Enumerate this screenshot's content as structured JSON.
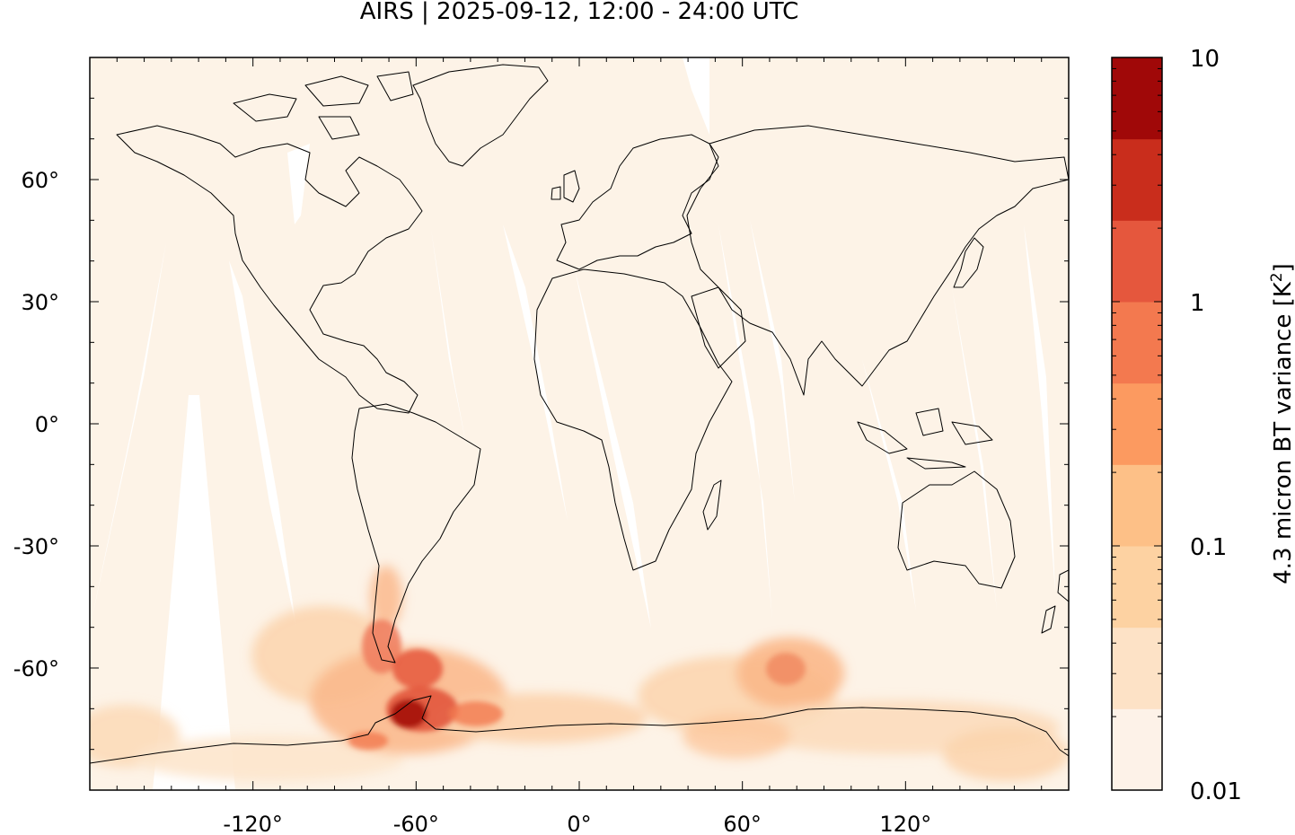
{
  "title": "AIRS | 2025-09-12, 12:00 - 24:00 UTC",
  "map": {
    "lon_range": [
      -180,
      180
    ],
    "lat_range": [
      -90,
      90
    ],
    "x_ticks": [
      {
        "value": -120,
        "label": "-120°"
      },
      {
        "value": -60,
        "label": "-60°"
      },
      {
        "value": 0,
        "label": "0°"
      },
      {
        "value": 60,
        "label": "60°"
      },
      {
        "value": 120,
        "label": "120°"
      }
    ],
    "y_ticks": [
      {
        "value": 60,
        "label": "60°"
      },
      {
        "value": 30,
        "label": "30°"
      },
      {
        "value": 0,
        "label": "0°"
      },
      {
        "value": -30,
        "label": "-30°"
      },
      {
        "value": -60,
        "label": "-60°"
      }
    ]
  },
  "colorbar": {
    "label_main": "4.3 micron BT variance [K",
    "label_sup": "2",
    "label_end": "]",
    "scale": "log",
    "ticks": [
      {
        "value": 10,
        "label": "10"
      },
      {
        "value": 1,
        "label": "1"
      },
      {
        "value": 0.1,
        "label": "0.1"
      },
      {
        "value": 0.01,
        "label": "0.01"
      }
    ],
    "colors": [
      "#fdf2e8",
      "#fde2c6",
      "#fdd2a2",
      "#fdc087",
      "#fc9a60",
      "#f3794f",
      "#e5573d",
      "#c92d1c",
      "#a00808"
    ]
  }
}
